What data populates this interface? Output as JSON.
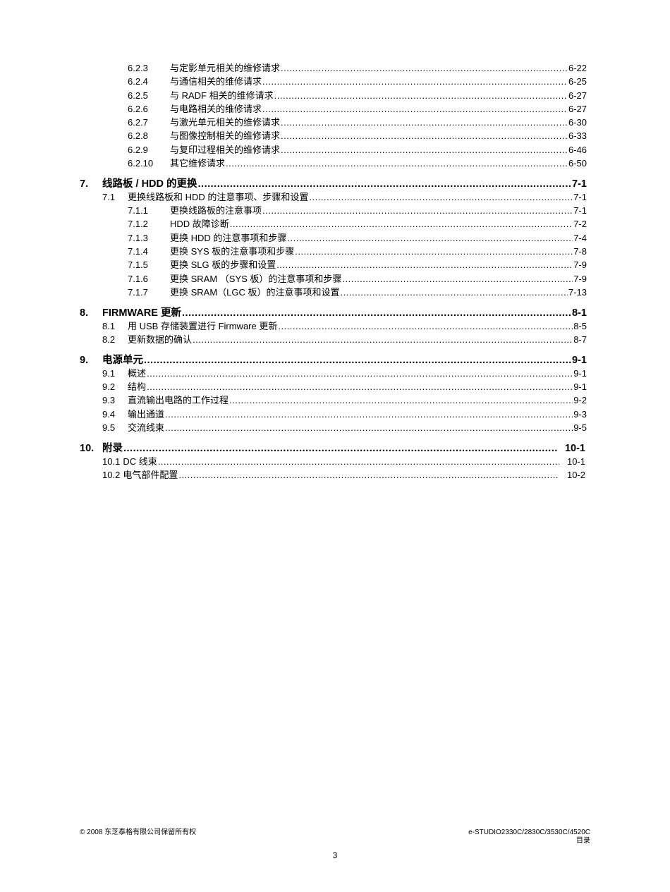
{
  "toc": [
    {
      "level": 3,
      "num": "6.2.3",
      "title": "与定影单元相关的维修请求",
      "page": "6-22"
    },
    {
      "level": 3,
      "num": "6.2.4",
      "title": "与通信相关的维修请求",
      "page": "6-25"
    },
    {
      "level": 3,
      "num": "6.2.5",
      "title": "与 RADF 相关的维修请求",
      "page": "6-27"
    },
    {
      "level": 3,
      "num": "6.2.6",
      "title": "与电路相关的维修请求",
      "page": "6-27"
    },
    {
      "level": 3,
      "num": "6.2.7",
      "title": "与激光单元相关的维修请求",
      "page": "6-30"
    },
    {
      "level": 3,
      "num": "6.2.8",
      "title": "与图像控制相关的维修请求",
      "page": "6-33"
    },
    {
      "level": 3,
      "num": "6.2.9",
      "title": "与复印过程相关的维修请求",
      "page": "6-46"
    },
    {
      "level": 3,
      "num": "6.2.10",
      "title": "其它维修请求",
      "page": "6-50"
    },
    {
      "level": 1,
      "num": "7.",
      "title": "线路板 / HDD 的更换",
      "page": "7-1"
    },
    {
      "level": 2,
      "num": "7.1",
      "title": "更换线路板和 HDD 的注意事项、步骤和设置",
      "page": "7-1"
    },
    {
      "level": 3,
      "num": "7.1.1",
      "title": "更换线路板的注意事项",
      "page": "7-1"
    },
    {
      "level": 3,
      "num": "7.1.2",
      "title": "HDD 故障诊断",
      "page": "7-2"
    },
    {
      "level": 3,
      "num": "7.1.3",
      "title": "更换 HDD 的注意事项和步骤",
      "page": "7-4"
    },
    {
      "level": 3,
      "num": "7.1.4",
      "title": "更换 SYS 板的注意事项和步骤",
      "page": "7-8"
    },
    {
      "level": 3,
      "num": "7.1.5",
      "title": "更换 SLG 板的步骤和设置",
      "page": "7-9"
    },
    {
      "level": 3,
      "num": "7.1.6",
      "title": "更换 SRAM （SYS 板）的注意事项和步骤",
      "page": "7-9"
    },
    {
      "level": 3,
      "num": "7.1.7",
      "title": "更换 SRAM（LGC 板）的注意事项和设置",
      "page": "7-13"
    },
    {
      "level": 1,
      "num": "8.",
      "title": "FIRMWARE 更新",
      "page": "8-1"
    },
    {
      "level": 2,
      "num": "8.1",
      "title": "用 USB 存储装置进行 Firmware 更新",
      "page": "8-5"
    },
    {
      "level": 2,
      "num": "8.2",
      "title": "更新数据的确认",
      "page": "8-7"
    },
    {
      "level": 1,
      "num": "9.",
      "title": "电源单元",
      "page": "9-1"
    },
    {
      "level": 2,
      "num": "9.1",
      "title": "概述",
      "page": "9-1"
    },
    {
      "level": 2,
      "num": "9.2",
      "title": "结构",
      "page": "9-1"
    },
    {
      "level": 2,
      "num": "9.3",
      "title": "直流输出电路的工作过程",
      "page": "9-2"
    },
    {
      "level": 2,
      "num": "9.4",
      "title": "输出通道",
      "page": "9-3"
    },
    {
      "level": 2,
      "num": "9.5",
      "title": "交流线束",
      "page": "9-5"
    },
    {
      "level": 1,
      "num": "10.",
      "title": "附录",
      "page": "10-1",
      "pad": true
    },
    {
      "level": 2,
      "num": "10.1",
      "title": "DC 线束",
      "page": "10-1",
      "pad": true,
      "inline": true
    },
    {
      "level": 2,
      "num": "10.2",
      "title": "电气部件配置",
      "page": "10-2",
      "pad": true,
      "inline": true
    }
  ],
  "footer": {
    "copyright": "© 2008 东芝泰格有限公司保留所有权",
    "model": "e-STUDIO2330C/2830C/3530C/4520C",
    "section": "目录",
    "page_number": "3"
  }
}
